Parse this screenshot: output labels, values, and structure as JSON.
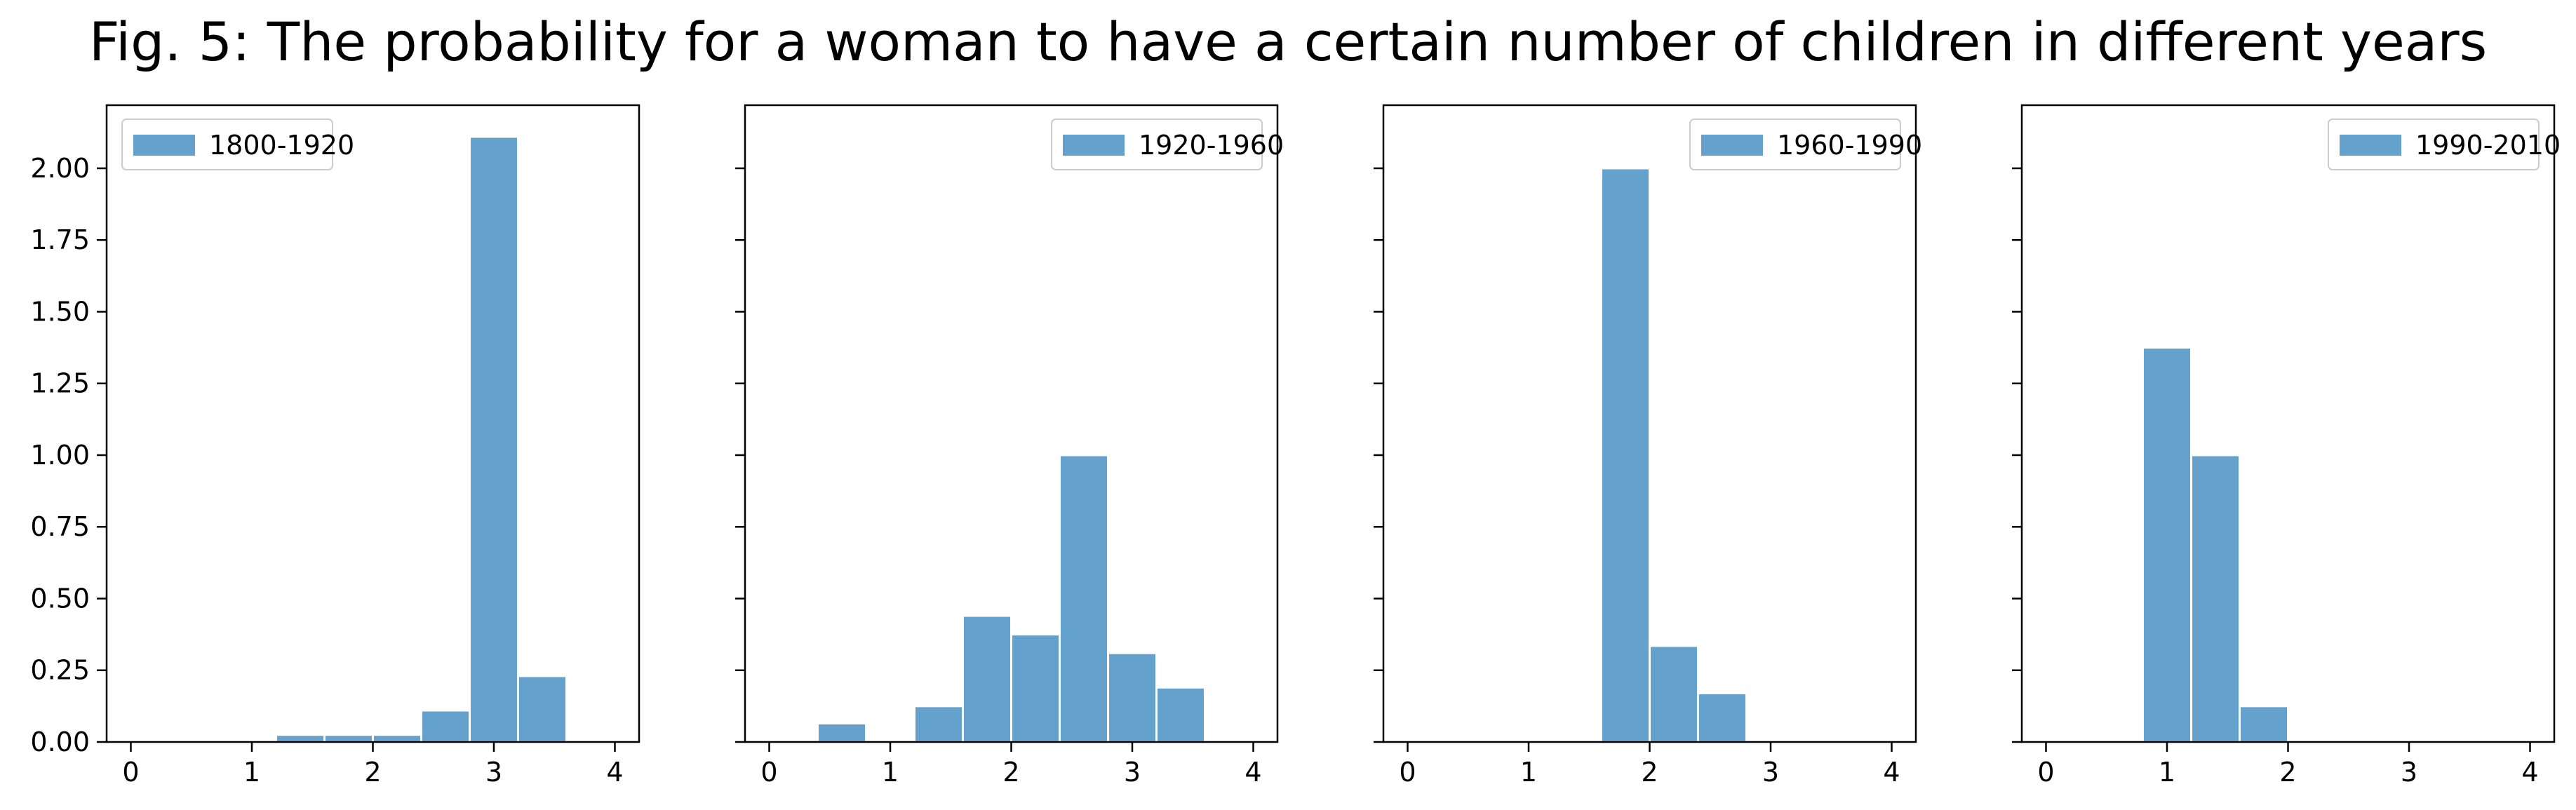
{
  "figure": {
    "title": "Fig. 5: The probability for a woman to have a certain number of children in different years"
  },
  "chart_data": [
    {
      "type": "bar",
      "legend": "1800-1920",
      "legend_position": "top-left",
      "bin_edges": [
        1.2,
        1.6,
        2.0,
        2.4,
        2.8,
        3.2,
        3.6
      ],
      "values": [
        0.025,
        0.025,
        0.025,
        0.11,
        2.11,
        0.23
      ],
      "xlim": [
        -0.2,
        4.2
      ],
      "ylim": [
        0,
        2.22
      ],
      "xticks": [
        0,
        1,
        2,
        3,
        4
      ],
      "yticks": [
        "0.00",
        "0.25",
        "0.50",
        "0.75",
        "1.00",
        "1.25",
        "1.50",
        "1.75",
        "2.00"
      ],
      "color": "#64a1cd"
    },
    {
      "type": "bar",
      "legend": "1920-1960",
      "legend_position": "top-right",
      "bin_edges": [
        0.4,
        0.8,
        1.2,
        1.6,
        2.0,
        2.4,
        2.8,
        3.2,
        3.6
      ],
      "values": [
        0.065,
        0.0,
        0.125,
        0.44,
        0.375,
        1.0,
        0.31,
        0.19
      ],
      "xlim": [
        -0.2,
        4.2
      ],
      "ylim": [
        0,
        2.22
      ],
      "xticks": [
        0,
        1,
        2,
        3,
        4
      ],
      "color": "#64a1cd"
    },
    {
      "type": "bar",
      "legend": "1960-1990",
      "legend_position": "top-right",
      "bin_edges": [
        1.6,
        2.0,
        2.4,
        2.8
      ],
      "values": [
        2.0,
        0.335,
        0.17
      ],
      "xlim": [
        -0.2,
        4.2
      ],
      "ylim": [
        0,
        2.22
      ],
      "xticks": [
        0,
        1,
        2,
        3,
        4
      ],
      "color": "#64a1cd"
    },
    {
      "type": "bar",
      "legend": "1990-2010",
      "legend_position": "top-right",
      "bin_edges": [
        0.8,
        1.2,
        1.6,
        2.0
      ],
      "values": [
        1.375,
        1.0,
        0.125
      ],
      "xlim": [
        -0.2,
        4.2
      ],
      "ylim": [
        0,
        2.22
      ],
      "xticks": [
        0,
        1,
        2,
        3,
        4
      ],
      "color": "#64a1cd"
    }
  ]
}
